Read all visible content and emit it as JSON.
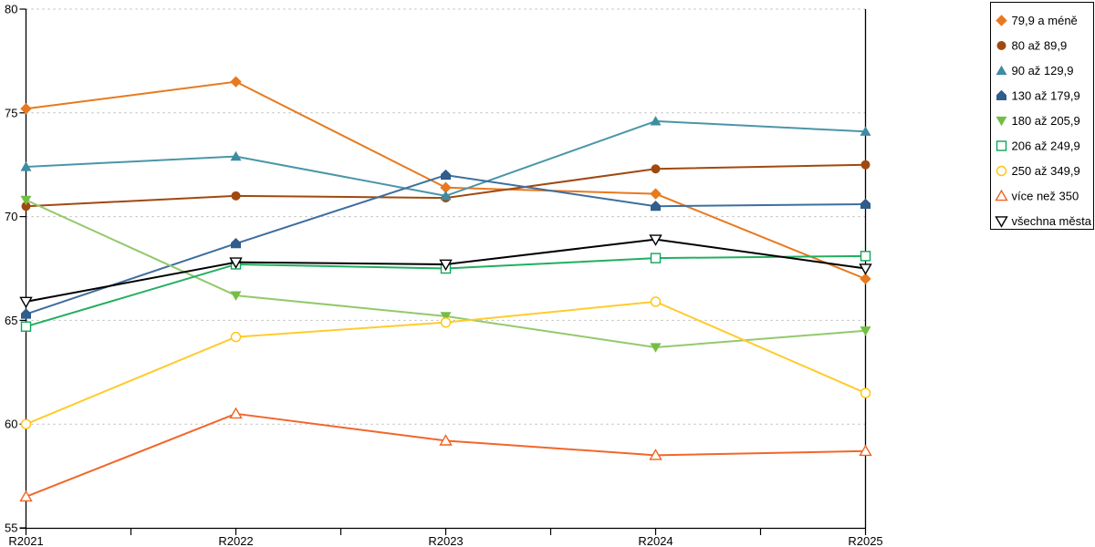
{
  "chart_data": {
    "type": "line",
    "title": "",
    "xlabel": "",
    "ylabel": "",
    "x_categories": [
      "R2021",
      "R2022",
      "R2023",
      "R2024",
      "R2025"
    ],
    "ylim": [
      55,
      80
    ],
    "y_ticks": [
      55,
      60,
      65,
      70,
      75,
      80
    ],
    "grid": "horizontal-dashed",
    "legend_position": "top-right",
    "series": [
      {
        "name": "79,9 a méně",
        "marker": "diamond",
        "fill": "filled",
        "color": "#E8791E",
        "line_color": "#E8791E",
        "values": [
          75.2,
          76.5,
          71.4,
          71.1,
          67.0
        ]
      },
      {
        "name": "80 až 89,9",
        "marker": "circle",
        "fill": "filled",
        "color": "#A0490F",
        "line_color": "#A0490F",
        "values": [
          70.5,
          71.0,
          70.9,
          72.3,
          72.5
        ]
      },
      {
        "name": "90 až 129,9",
        "marker": "triangle-up",
        "fill": "filled",
        "color": "#3E8CA2",
        "line_color": "#4A96A8",
        "values": [
          72.4,
          72.9,
          71.0,
          74.6,
          74.1
        ]
      },
      {
        "name": "130 až 179,9",
        "marker": "pentagon",
        "fill": "filled",
        "color": "#2F5D8C",
        "line_color": "#3E6E9F",
        "values": [
          65.3,
          68.7,
          72.0,
          70.5,
          70.6
        ]
      },
      {
        "name": "180 až 205,9",
        "marker": "triangle-down",
        "fill": "filled",
        "color": "#76BE43",
        "line_color": "#93C96B",
        "values": [
          70.8,
          66.2,
          65.2,
          63.7,
          64.5
        ]
      },
      {
        "name": "206 až 249,9",
        "marker": "square",
        "fill": "open",
        "color": "#0EA65A",
        "line_color": "#22AF5F",
        "values": [
          64.7,
          67.7,
          67.5,
          68.0,
          68.1
        ]
      },
      {
        "name": "250 až 349,9",
        "marker": "circle",
        "fill": "open",
        "color": "#FFC408",
        "line_color": "#FFCB2E",
        "values": [
          60.0,
          64.2,
          64.9,
          65.9,
          61.5
        ]
      },
      {
        "name": "více než 350",
        "marker": "triangle-up",
        "fill": "open",
        "color": "#F2621F",
        "line_color": "#F2662A",
        "values": [
          56.5,
          60.5,
          59.2,
          58.5,
          58.7
        ]
      },
      {
        "name": "všechna města",
        "marker": "triangle-down",
        "fill": "open",
        "color": "#000000",
        "line_color": "#000000",
        "values": [
          65.9,
          67.8,
          67.7,
          68.9,
          67.5
        ]
      }
    ]
  },
  "colors": {
    "background": "#FFFFFF",
    "axis": "#000000",
    "grid": "#B3B3B3",
    "legend_border": "#000000",
    "text": "#000000"
  }
}
